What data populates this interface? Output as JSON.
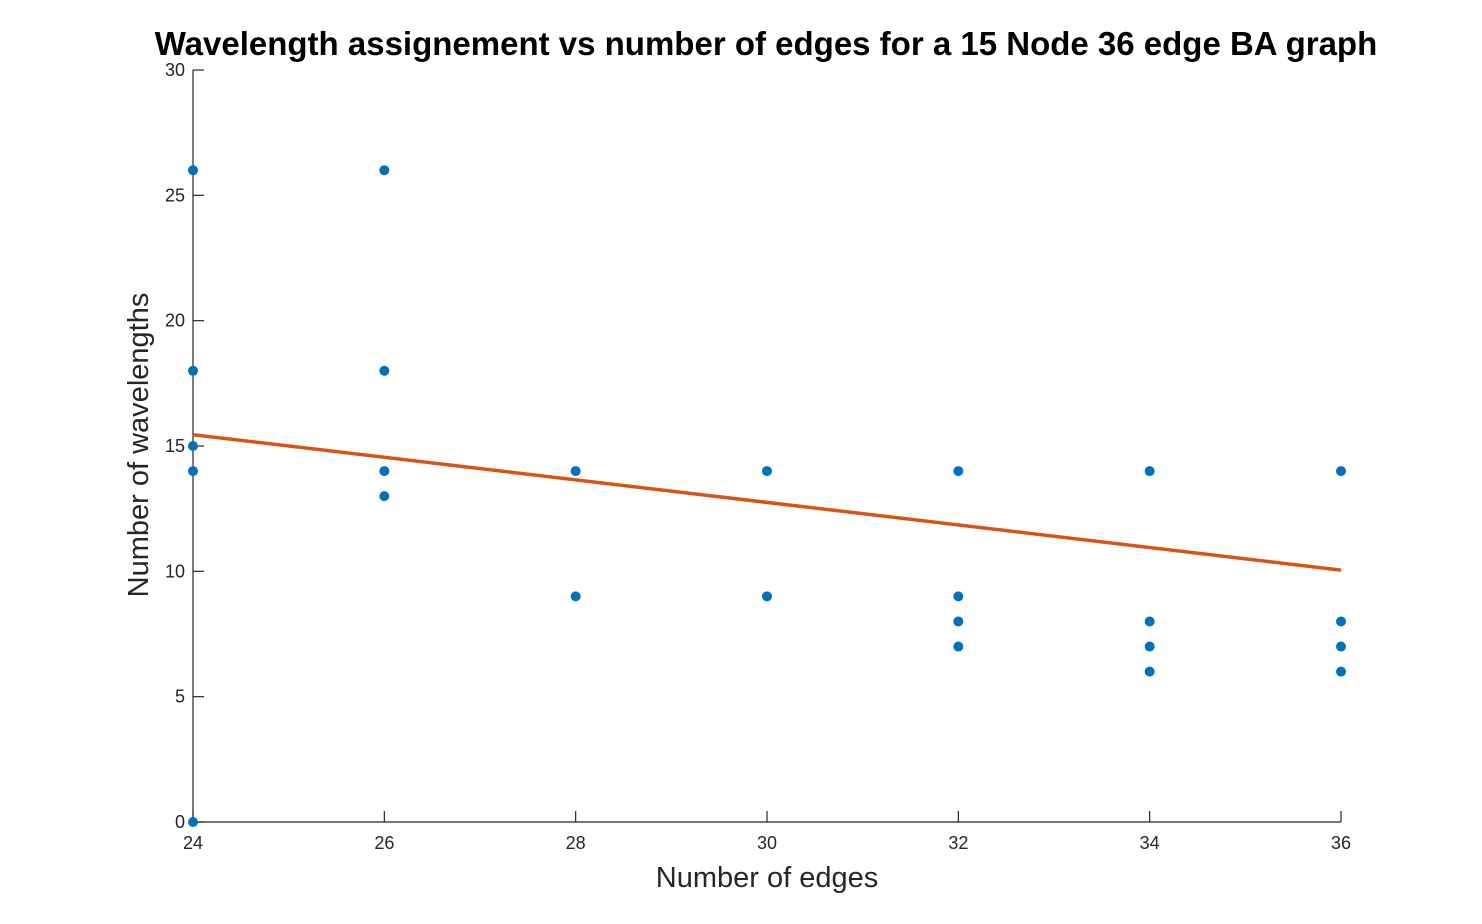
{
  "chart_data": {
    "type": "scatter",
    "title": "Wavelength assignement vs number of edges for a 15 Node 36 edge BA graph",
    "xlabel": "Number of edges",
    "ylabel": "Number of wavelengths",
    "xlim": [
      24,
      36
    ],
    "ylim": [
      0,
      30
    ],
    "xticks": [
      "24",
      "26",
      "28",
      "30",
      "32",
      "34",
      "36"
    ],
    "yticks": [
      "0",
      "5",
      "10",
      "15",
      "20",
      "25",
      "30"
    ],
    "grid": false,
    "legend": "none",
    "series": [
      {
        "type": "scatter",
        "color": "#0072BD",
        "points": [
          [
            24,
            26
          ],
          [
            24,
            18
          ],
          [
            24,
            15
          ],
          [
            24,
            14
          ],
          [
            24,
            0
          ],
          [
            26,
            26
          ],
          [
            26,
            18
          ],
          [
            26,
            14
          ],
          [
            26,
            13
          ],
          [
            28,
            14
          ],
          [
            28,
            9
          ],
          [
            30,
            14
          ],
          [
            30,
            9
          ],
          [
            32,
            14
          ],
          [
            32,
            9
          ],
          [
            32,
            8
          ],
          [
            32,
            7
          ],
          [
            34,
            14
          ],
          [
            34,
            8
          ],
          [
            34,
            7
          ],
          [
            34,
            6
          ],
          [
            36,
            14
          ],
          [
            36,
            8
          ],
          [
            36,
            7
          ],
          [
            36,
            6
          ]
        ]
      },
      {
        "type": "line",
        "color": "#D95319",
        "points": [
          [
            24,
            15.45
          ],
          [
            36,
            10.05
          ]
        ]
      }
    ]
  }
}
